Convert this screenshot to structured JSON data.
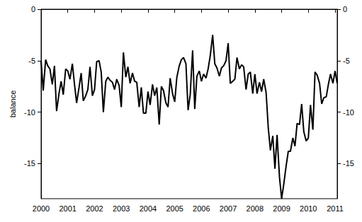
{
  "chart_data": {
    "type": "line",
    "y_label": "balance",
    "x": [
      2000,
      2000.08,
      2000.17,
      2000.25,
      2000.33,
      2000.42,
      2000.5,
      2000.58,
      2000.67,
      2000.75,
      2000.83,
      2000.92,
      2001,
      2001.08,
      2001.17,
      2001.25,
      2001.33,
      2001.42,
      2001.5,
      2001.58,
      2001.67,
      2001.75,
      2001.83,
      2001.92,
      2002,
      2002.08,
      2002.17,
      2002.25,
      2002.33,
      2002.42,
      2002.5,
      2002.58,
      2002.67,
      2002.75,
      2002.83,
      2002.92,
      2003,
      2003.08,
      2003.17,
      2003.25,
      2003.33,
      2003.42,
      2003.5,
      2003.58,
      2003.67,
      2003.75,
      2003.83,
      2003.92,
      2004,
      2004.08,
      2004.17,
      2004.25,
      2004.33,
      2004.42,
      2004.5,
      2004.58,
      2004.67,
      2004.75,
      2004.83,
      2004.92,
      2005,
      2005.08,
      2005.17,
      2005.25,
      2005.33,
      2005.42,
      2005.5,
      2005.58,
      2005.67,
      2005.75,
      2005.83,
      2005.92,
      2006,
      2006.08,
      2006.17,
      2006.25,
      2006.33,
      2006.42,
      2006.5,
      2006.58,
      2006.67,
      2006.75,
      2006.83,
      2006.92,
      2007,
      2007.08,
      2007.17,
      2007.25,
      2007.33,
      2007.42,
      2007.5,
      2007.58,
      2007.67,
      2007.75,
      2007.83,
      2007.92,
      2008,
      2008.08,
      2008.17,
      2008.25,
      2008.33,
      2008.42,
      2008.5,
      2008.58,
      2008.67,
      2008.75,
      2008.83,
      2008.92,
      2009,
      2009.08,
      2009.17,
      2009.25,
      2009.33,
      2009.42,
      2009.5,
      2009.58,
      2009.67,
      2009.75,
      2009.83,
      2009.92,
      2010,
      2010.08,
      2010.17,
      2010.25,
      2010.33,
      2010.42,
      2010.5,
      2010.58,
      2010.67,
      2010.75,
      2010.83,
      2010.92,
      2011,
      2011.08
    ],
    "series": [
      {
        "name": "balance",
        "color": "#000000",
        "values": [
          -5.0,
          -7.9,
          -4.9,
          -5.5,
          -5.8,
          -7.3,
          -5.5,
          -9.9,
          -8.2,
          -7.0,
          -8.3,
          -5.8,
          -6.0,
          -6.8,
          -5.3,
          -7.3,
          -9.1,
          -7.6,
          -6.2,
          -8.9,
          -8.4,
          -7.8,
          -5.6,
          -8.4,
          -7.8,
          -5.1,
          -5.0,
          -6.1,
          -10.0,
          -7.0,
          -6.6,
          -6.9,
          -7.1,
          -7.8,
          -6.8,
          -7.4,
          -9.5,
          -4.2,
          -6.6,
          -5.6,
          -7.2,
          -6.2,
          -7.0,
          -7.1,
          -9.5,
          -7.6,
          -10.1,
          -10.1,
          -8.0,
          -9.3,
          -7.3,
          -8.4,
          -7.6,
          -11.2,
          -7.5,
          -7.9,
          -9.1,
          -9.5,
          -6.7,
          -8.2,
          -9.0,
          -6.6,
          -5.5,
          -4.9,
          -4.7,
          -5.3,
          -9.8,
          -8.3,
          -4.0,
          -9.7,
          -6.5,
          -6.0,
          -7.0,
          -6.3,
          -6.7,
          -5.8,
          -4.5,
          -2.5,
          -5.3,
          -5.7,
          -6.5,
          -5.7,
          -5.5,
          -5.0,
          -3.3,
          -7.2,
          -7.0,
          -6.8,
          -4.7,
          -5.8,
          -5.4,
          -5.6,
          -7.8,
          -6.3,
          -6.1,
          -8.2,
          -6.3,
          -8.2,
          -7.1,
          -8.0,
          -6.8,
          -8.1,
          -11.5,
          -13.7,
          -12.3,
          -15.5,
          -12.2,
          -16.3,
          -18.4,
          -17.0,
          -15.2,
          -13.8,
          -13.8,
          -12.5,
          -13.3,
          -11.1,
          -11.2,
          -9.2,
          -11.9,
          -12.8,
          -12.5,
          -9.3,
          -11.7,
          -6.1,
          -6.4,
          -7.2,
          -9.2,
          -8.6,
          -8.5,
          -7.3,
          -6.3,
          -7.2,
          -6.0,
          -7.2
        ]
      }
    ],
    "xlim": [
      2000,
      2011.08
    ],
    "xticks": [
      2000,
      2001,
      2002,
      2003,
      2004,
      2005,
      2006,
      2007,
      2008,
      2009,
      2010,
      2011
    ],
    "ylim": [
      -18.4,
      0
    ],
    "yticks": [
      -15,
      -10,
      -5,
      0
    ],
    "grid": false
  }
}
